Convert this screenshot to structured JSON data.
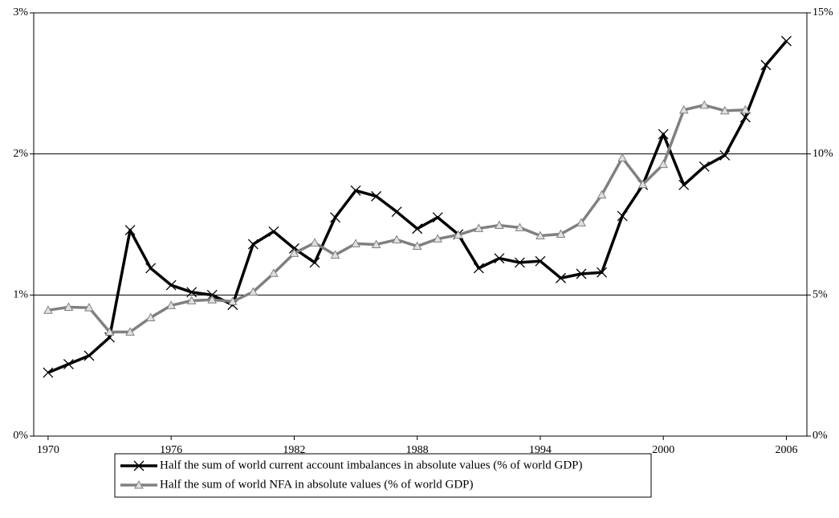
{
  "chart_data": {
    "type": "line",
    "x": [
      1970,
      1971,
      1972,
      1973,
      1974,
      1975,
      1976,
      1977,
      1978,
      1979,
      1980,
      1981,
      1982,
      1983,
      1984,
      1985,
      1986,
      1987,
      1988,
      1989,
      1990,
      1991,
      1992,
      1993,
      1994,
      1995,
      1996,
      1997,
      1998,
      1999,
      2000,
      2001,
      2002,
      2003,
      2004,
      2005,
      2006
    ],
    "xlim": [
      1969.3,
      2007
    ],
    "xticks": [
      1970,
      1976,
      1982,
      1988,
      1994,
      2000,
      2006
    ],
    "ylim": [
      0,
      3
    ],
    "yticks": [
      {
        "value": 0,
        "label": "0%"
      },
      {
        "value": 1,
        "label": "1%"
      },
      {
        "value": 2,
        "label": "2%"
      },
      {
        "value": 3,
        "label": "3%"
      }
    ],
    "y2lim": [
      0,
      15
    ],
    "y2ticks": [
      {
        "value": 0,
        "label": "0%"
      },
      {
        "value": 5,
        "label": "5%"
      },
      {
        "value": 10,
        "label": "10%"
      },
      {
        "value": 15,
        "label": "15%"
      }
    ],
    "grid": true,
    "series": [
      {
        "name": "Half the sum of world current account imbalances in absolute values (% of world GDP)",
        "color": "#000000",
        "marker": "x",
        "values": [
          0.45,
          0.51,
          0.57,
          0.7,
          1.46,
          1.19,
          1.07,
          1.02,
          1.0,
          0.93,
          1.36,
          1.45,
          1.33,
          1.23,
          1.55,
          1.74,
          1.7,
          1.59,
          1.47,
          1.55,
          1.43,
          1.19,
          1.26,
          1.23,
          1.24,
          1.12,
          1.15,
          1.16,
          1.56,
          1.78,
          2.14,
          1.78,
          1.91,
          1.99,
          2.26,
          2.63,
          2.8
        ]
      },
      {
        "name": "Half the sum of world NFA in absolute values (% of world GDP)",
        "color": "#808080",
        "marker": "triangle",
        "axis": "y2",
        "values": [
          4.46,
          4.57,
          4.55,
          3.69,
          3.69,
          4.2,
          4.63,
          4.8,
          4.83,
          4.77,
          5.11,
          5.77,
          6.48,
          6.85,
          6.42,
          6.82,
          6.79,
          6.96,
          6.73,
          6.99,
          7.13,
          7.36,
          7.47,
          7.39,
          7.1,
          7.16,
          7.56,
          8.55,
          9.86,
          8.92,
          9.63,
          11.56,
          11.73,
          11.53,
          11.56,
          null,
          null
        ]
      }
    ]
  }
}
